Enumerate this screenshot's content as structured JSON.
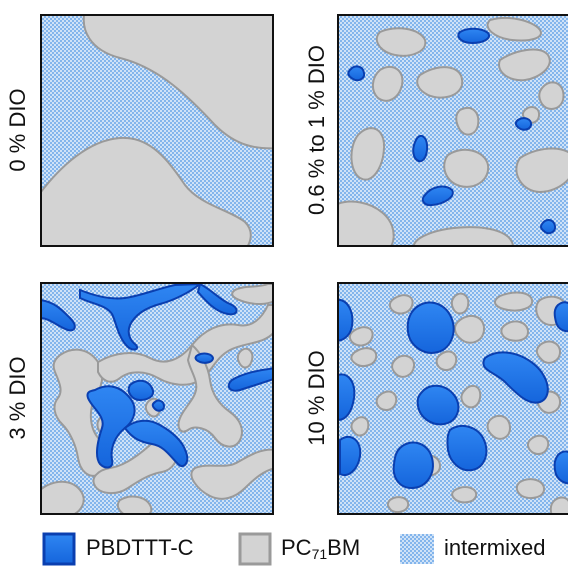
{
  "panels": [
    {
      "label": "0 % DIO"
    },
    {
      "label": "0.6 % to 1 % DIO"
    },
    {
      "label": "3 % DIO"
    },
    {
      "label": "10 % DIO"
    }
  ],
  "legend": {
    "pbdttt": "PBDTTT-C",
    "pcbm_main": "PC",
    "pcbm_sub": "71",
    "pcbm_tail": "BM",
    "intermixed": "intermixed"
  },
  "colors": {
    "pbdttt_fill": "#1e78ee",
    "pbdttt_stroke": "#0a3fb0",
    "pcbm_fill": "#d3d3d3",
    "pcbm_stroke": "#9a9a9a",
    "intermixed_base": "#cfe2f7",
    "intermixed_dot": "#4d95e5"
  }
}
